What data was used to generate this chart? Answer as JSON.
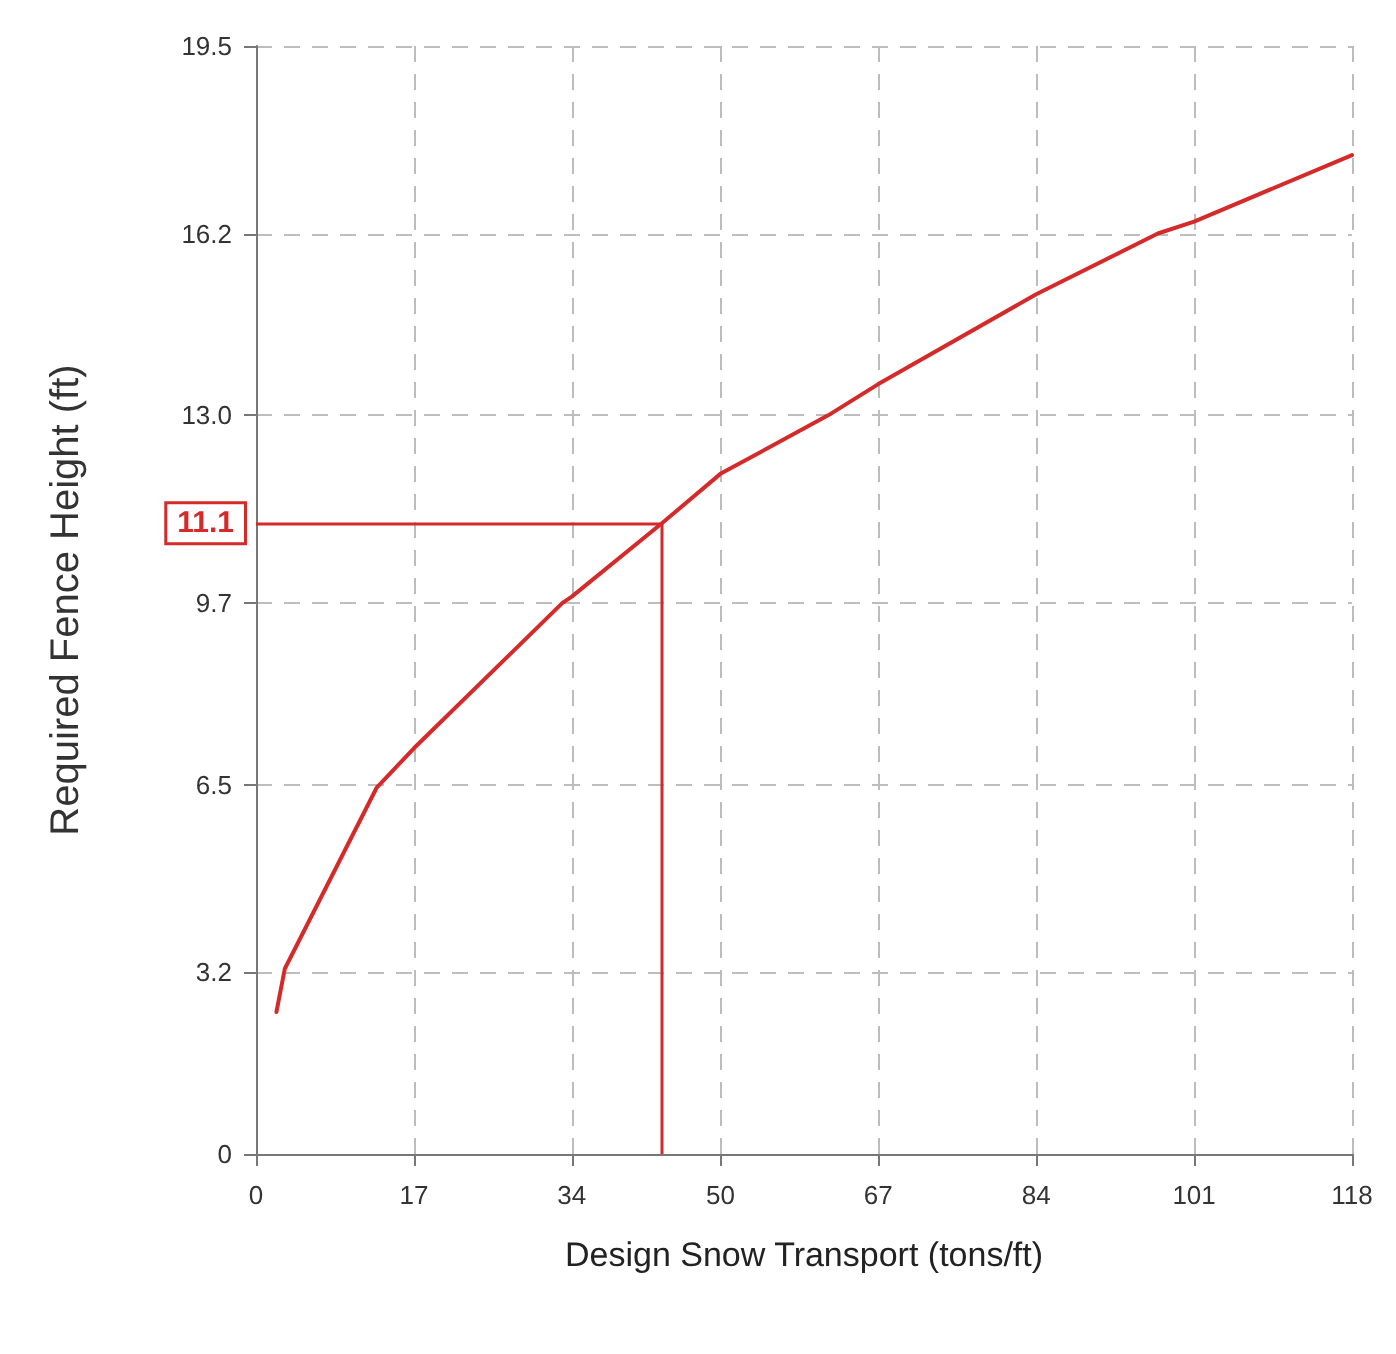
{
  "chart_data": {
    "type": "line",
    "xlabel": "Design Snow Transport (tons/ft)",
    "ylabel": "Required Fence Height (ft)",
    "x": [
      2.2,
      3.1,
      13.0,
      17,
      33.0,
      34,
      43.7,
      50,
      61.6,
      67,
      84,
      97.1,
      101,
      118
    ],
    "series": [
      {
        "color": "#d42a2a",
        "values": [
          2.5,
          3.26,
          6.45,
          7.14,
          9.7,
          9.81,
          11.1,
          11.97,
          13.0,
          13.55,
          15.13,
          16.2,
          16.41,
          17.58
        ]
      }
    ],
    "xlim": [
      0,
      118
    ],
    "xticks": [
      0,
      17,
      34,
      50,
      67,
      84,
      101,
      118
    ],
    "ylim": [
      0,
      19.5
    ],
    "yticks": [
      0,
      3.2,
      6.5,
      9.7,
      {
        "value": 13,
        "label": "13.0"
      },
      16.2,
      19.5
    ],
    "ref_lines": [
      {
        "axis": "y",
        "value": 11.1,
        "label": "11.1"
      },
      {
        "axis": "x",
        "value": 43.7
      }
    ],
    "grid": true,
    "marker": "none",
    "line_style": "solid"
  }
}
